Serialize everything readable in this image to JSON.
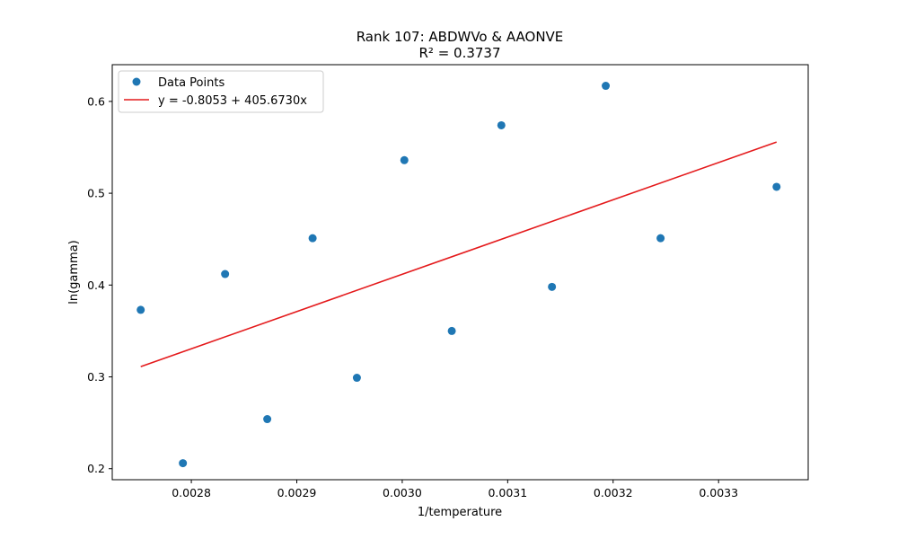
{
  "chart_data": {
    "type": "scatter",
    "title_line1": "Rank 107: ABDWVo & AAONVE",
    "title_line2": "R² = 0.3737",
    "xlabel": "1/temperature",
    "ylabel": "ln(gamma)",
    "xlim": [
      0.002725,
      0.003385
    ],
    "ylim": [
      0.188,
      0.64
    ],
    "xticks": [
      0.0028,
      0.0029,
      0.003,
      0.0031,
      0.0032,
      0.0033
    ],
    "xtick_labels": [
      "0.0028",
      "0.0029",
      "0.0030",
      "0.0031",
      "0.0032",
      "0.0033"
    ],
    "yticks": [
      0.2,
      0.3,
      0.4,
      0.5,
      0.6
    ],
    "ytick_labels": [
      "0.2",
      "0.3",
      "0.4",
      "0.5",
      "0.6"
    ],
    "legend_position": "top-left",
    "series": [
      {
        "name": "Data Points",
        "kind": "scatter",
        "color": "#1f77b4",
        "x": [
          0.002752,
          0.002792,
          0.002832,
          0.002872,
          0.002915,
          0.002957,
          0.003002,
          0.003047,
          0.003094,
          0.003142,
          0.003193,
          0.003245,
          0.003355
        ],
        "y": [
          0.373,
          0.206,
          0.412,
          0.254,
          0.451,
          0.299,
          0.536,
          0.35,
          0.574,
          0.398,
          0.617,
          0.451,
          0.507
        ]
      },
      {
        "name": "y = -0.8053 + 405.6730x",
        "kind": "line",
        "color": "#e41a1c",
        "intercept": -0.8053,
        "slope": 405.673,
        "x_range": [
          0.002752,
          0.003355
        ]
      }
    ]
  }
}
